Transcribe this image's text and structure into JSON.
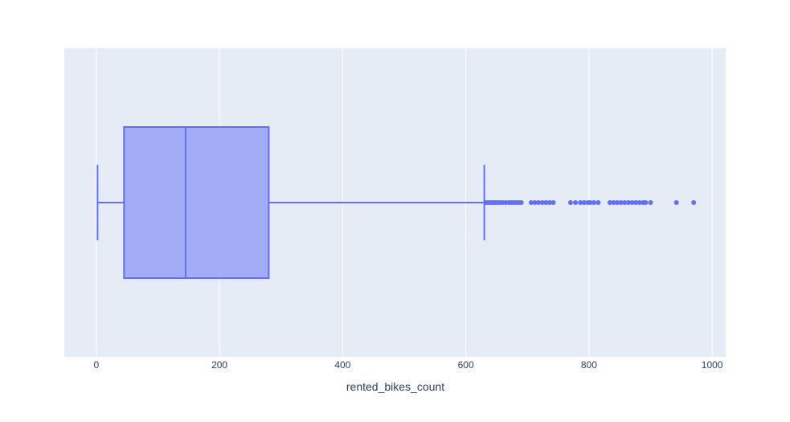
{
  "chart_data": {
    "type": "box",
    "orientation": "horizontal",
    "xlabel": "rented_bikes_count",
    "xlim": [
      -52,
      1022
    ],
    "xticks": [
      0,
      200,
      400,
      600,
      800,
      1000
    ],
    "xtick_labels": [
      "0",
      "200",
      "400",
      "600",
      "800",
      "1000"
    ],
    "grid": true,
    "colors": {
      "plot_bg": "#e5ecf6",
      "grid": "#ffffff",
      "box_fill": "#a3acf7",
      "box_line": "#636efa",
      "text": "#2a3f5f"
    },
    "box": {
      "min": 2,
      "q1": 45,
      "median": 145,
      "q3": 280,
      "upper_fence": 630
    },
    "outliers": [
      632,
      636,
      640,
      643,
      646,
      649,
      652,
      656,
      660,
      665,
      670,
      674,
      678,
      682,
      686,
      690,
      706,
      712,
      718,
      724,
      730,
      736,
      742,
      770,
      778,
      786,
      792,
      798,
      802,
      808,
      815,
      834,
      840,
      846,
      852,
      858,
      864,
      870,
      876,
      882,
      888,
      892,
      900,
      942,
      970
    ]
  }
}
